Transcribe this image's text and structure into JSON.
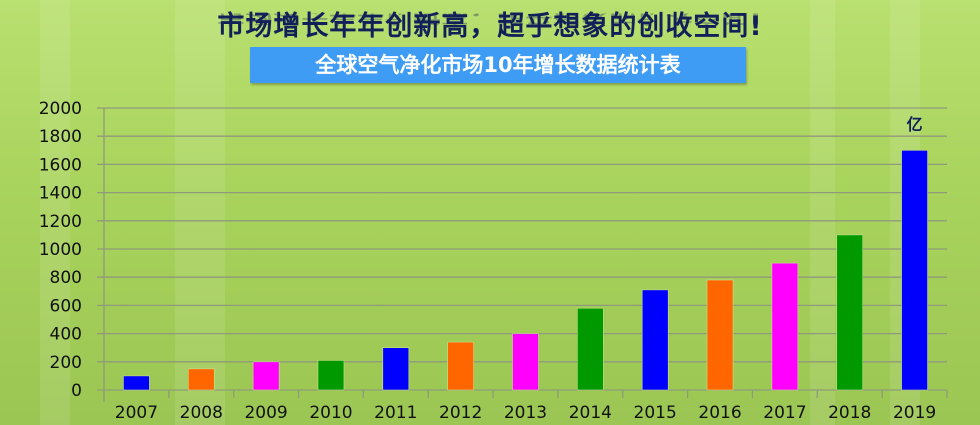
{
  "headline": "市场增长年年创新高，超乎想象的创收空间!",
  "chart_data": {
    "type": "bar",
    "title": "全球空气净化市场10年增长数据统计表",
    "unit_label": "亿",
    "categories": [
      "2007",
      "2008",
      "2009",
      "2010",
      "2011",
      "2012",
      "2013",
      "2014",
      "2015",
      "2016",
      "2017",
      "2018",
      "2019"
    ],
    "values": [
      100,
      150,
      200,
      210,
      300,
      340,
      400,
      580,
      710,
      780,
      900,
      1100,
      1700
    ],
    "bar_colors": [
      "#0000ff",
      "#ff6600",
      "#ff00ff",
      "#009900",
      "#0000ff",
      "#ff6600",
      "#ff00ff",
      "#009900",
      "#0000ff",
      "#ff6600",
      "#ff00ff",
      "#009900",
      "#0000ff"
    ],
    "ylim": [
      0,
      2000
    ],
    "yticks": [
      "0",
      "200",
      "400",
      "600",
      "800",
      "1000",
      "1200",
      "1400",
      "1600",
      "1800",
      "2000"
    ],
    "grid": true,
    "legend": "none"
  }
}
